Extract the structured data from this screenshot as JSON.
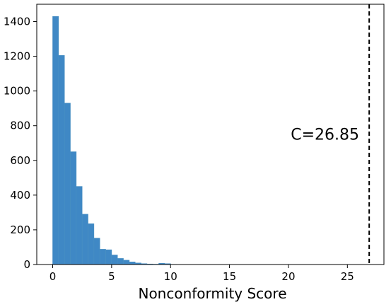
{
  "chart_data": {
    "type": "histogram",
    "title": "",
    "xlabel": "Nonconformity Score",
    "ylabel": "",
    "xlim": [
      -1.35,
      28.1
    ],
    "ylim": [
      0,
      1500
    ],
    "xticks": [
      0,
      5,
      10,
      15,
      20,
      25
    ],
    "yticks": [
      0,
      200,
      400,
      600,
      800,
      1000,
      1200,
      1400
    ],
    "bin_width": 0.5,
    "bins": [
      {
        "x0": 0.0,
        "x1": 0.5,
        "count": 1430
      },
      {
        "x0": 0.5,
        "x1": 1.0,
        "count": 1205
      },
      {
        "x0": 1.0,
        "x1": 1.5,
        "count": 930
      },
      {
        "x0": 1.5,
        "x1": 2.0,
        "count": 650
      },
      {
        "x0": 2.0,
        "x1": 2.5,
        "count": 450
      },
      {
        "x0": 2.5,
        "x1": 3.0,
        "count": 290
      },
      {
        "x0": 3.0,
        "x1": 3.5,
        "count": 235
      },
      {
        "x0": 3.5,
        "x1": 4.0,
        "count": 152
      },
      {
        "x0": 4.0,
        "x1": 4.5,
        "count": 88
      },
      {
        "x0": 4.5,
        "x1": 5.0,
        "count": 85
      },
      {
        "x0": 5.0,
        "x1": 5.5,
        "count": 55
      },
      {
        "x0": 5.5,
        "x1": 6.0,
        "count": 35
      },
      {
        "x0": 6.0,
        "x1": 6.5,
        "count": 25
      },
      {
        "x0": 6.5,
        "x1": 7.0,
        "count": 15
      },
      {
        "x0": 7.0,
        "x1": 7.5,
        "count": 9
      },
      {
        "x0": 7.5,
        "x1": 8.0,
        "count": 5
      },
      {
        "x0": 8.0,
        "x1": 8.5,
        "count": 3
      },
      {
        "x0": 8.5,
        "x1": 9.0,
        "count": 2
      },
      {
        "x0": 9.0,
        "x1": 9.5,
        "count": 7
      },
      {
        "x0": 9.5,
        "x1": 10.0,
        "count": 5
      },
      {
        "x0": 10.0,
        "x1": 10.5,
        "count": 1
      }
    ],
    "bar_color": "#3f88c5",
    "bar_edge_color": "#4a90c2",
    "threshold": {
      "x": 26.85,
      "label": "C=26.85",
      "style": "dashed",
      "color": "#000000"
    },
    "grid": false,
    "legend": "none"
  }
}
